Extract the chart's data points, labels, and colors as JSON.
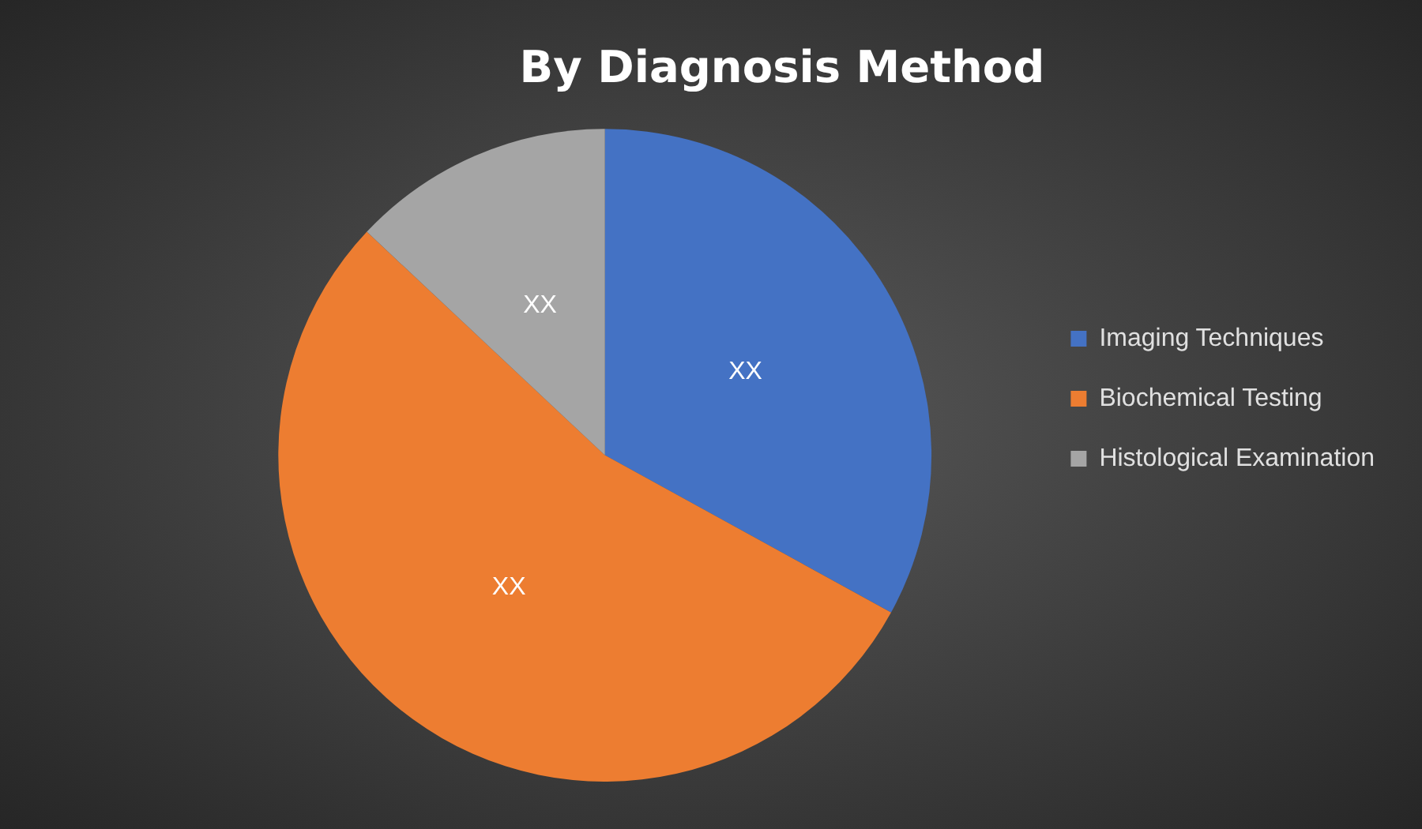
{
  "chart_data": {
    "type": "pie",
    "title": "By Diagnosis Method",
    "categories": [
      "Imaging Techniques",
      "Biochemical Testing",
      "Histological Examination"
    ],
    "values": [
      33,
      54,
      13
    ],
    "colors": [
      "#4472c4",
      "#ed7d31",
      "#a5a5a5"
    ],
    "value_labels": [
      "XX",
      "XX",
      "XX"
    ],
    "legend": "right"
  }
}
